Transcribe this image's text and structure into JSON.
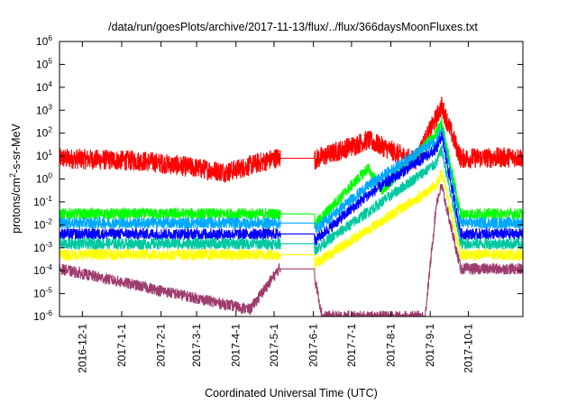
{
  "chart_data": {
    "type": "line",
    "title": "/data/run/goesPlots/archive/2017-11-13/flux/../flux/366daysMoonFluxes.txt",
    "xlabel": "Coordinated Universal Time (UTC)",
    "ylabel_base": "protons/cm",
    "ylabel_sup": "2",
    "ylabel_rest": "-s-sr-MeV",
    "yscale": "log",
    "ylim": [
      1e-06,
      1000000.0
    ],
    "xlim": [
      "2016-11-13",
      "2017-11-13"
    ],
    "grid": false,
    "y_ticks": [
      {
        "base": "10",
        "exp": "-6",
        "value": 1e-06
      },
      {
        "base": "10",
        "exp": "-5",
        "value": 1e-05
      },
      {
        "base": "10",
        "exp": "-4",
        "value": 0.0001
      },
      {
        "base": "10",
        "exp": "-3",
        "value": 0.001
      },
      {
        "base": "10",
        "exp": "-2",
        "value": 0.01
      },
      {
        "base": "10",
        "exp": "-1",
        "value": 0.1
      },
      {
        "base": "10",
        "exp": "0",
        "value": 1
      },
      {
        "base": "10",
        "exp": "1",
        "value": 10
      },
      {
        "base": "10",
        "exp": "2",
        "value": 100
      },
      {
        "base": "10",
        "exp": "3",
        "value": 1000
      },
      {
        "base": "10",
        "exp": "4",
        "value": 10000
      },
      {
        "base": "10",
        "exp": "5",
        "value": 100000
      },
      {
        "base": "10",
        "exp": "6",
        "value": 1000000
      }
    ],
    "x_ticks": [
      "2016-12-1",
      "2017-1-1",
      "2017-2-1",
      "2017-3-1",
      "2017-4-1",
      "2017-5-1",
      "2017-6-1",
      "2017-7-1",
      "2017-8-1",
      "2017-9-1",
      "2017-10-1"
    ],
    "data_gap": [
      "2017-05-06",
      "2017-06-02"
    ],
    "series": [
      {
        "color": "#ff0000",
        "typical": 8,
        "points": [
          [
            "2016-11-13",
            8
          ],
          [
            "2017-01-20",
            6
          ],
          [
            "2017-03-25",
            2
          ],
          [
            "2017-05-05",
            9
          ],
          [
            "2017-06-02",
            7
          ],
          [
            "2017-07-14",
            50
          ],
          [
            "2017-08-20",
            6
          ],
          [
            "2017-09-06",
            500
          ],
          [
            "2017-09-10",
            1500
          ],
          [
            "2017-09-25",
            8
          ],
          [
            "2017-11-13",
            9
          ]
        ]
      },
      {
        "color": "#00ff00",
        "typical": 0.03,
        "points": [
          [
            "2016-11-13",
            0.03
          ],
          [
            "2017-05-05",
            0.03
          ],
          [
            "2017-06-02",
            0.01
          ],
          [
            "2017-07-14",
            3
          ],
          [
            "2017-07-25",
            0.3
          ],
          [
            "2017-09-06",
            100
          ],
          [
            "2017-09-10",
            300
          ],
          [
            "2017-09-25",
            0.03
          ],
          [
            "2017-11-13",
            0.03
          ]
        ]
      },
      {
        "color": "#00a8ff",
        "typical": 0.012,
        "points": [
          [
            "2016-11-13",
            0.012
          ],
          [
            "2017-05-05",
            0.012
          ],
          [
            "2017-06-02",
            0.006
          ],
          [
            "2017-07-14",
            0.5
          ],
          [
            "2017-09-06",
            50
          ],
          [
            "2017-09-10",
            150
          ],
          [
            "2017-09-25",
            0.012
          ],
          [
            "2017-11-13",
            0.012
          ]
        ]
      },
      {
        "color": "#0000ff",
        "typical": 0.004,
        "points": [
          [
            "2016-11-13",
            0.004
          ],
          [
            "2017-05-05",
            0.004
          ],
          [
            "2017-06-02",
            0.002
          ],
          [
            "2017-07-14",
            0.2
          ],
          [
            "2017-09-06",
            20
          ],
          [
            "2017-09-10",
            80
          ],
          [
            "2017-09-25",
            0.004
          ],
          [
            "2017-11-13",
            0.004
          ]
        ]
      },
      {
        "color": "#00c8a0",
        "typical": 0.0015,
        "points": [
          [
            "2016-11-13",
            0.0015
          ],
          [
            "2017-05-05",
            0.0015
          ],
          [
            "2017-06-02",
            0.0008
          ],
          [
            "2017-09-06",
            5
          ],
          [
            "2017-09-10",
            20
          ],
          [
            "2017-09-25",
            0.0015
          ],
          [
            "2017-11-13",
            0.0015
          ]
        ]
      },
      {
        "color": "#ffff00",
        "typical": 0.0005,
        "points": [
          [
            "2016-11-13",
            0.0005
          ],
          [
            "2017-05-05",
            0.0005
          ],
          [
            "2017-06-02",
            0.0002
          ],
          [
            "2017-09-06",
            0.5
          ],
          [
            "2017-09-10",
            2
          ],
          [
            "2017-09-25",
            0.0005
          ],
          [
            "2017-11-13",
            0.0005
          ]
        ]
      },
      {
        "color": "#9e3c6e",
        "typical": 0.00012,
        "points": [
          [
            "2016-11-13",
            0.00012
          ],
          [
            "2017-04-12",
            2e-06
          ],
          [
            "2017-05-05",
            0.00012
          ],
          [
            "2017-06-02",
            5e-05
          ],
          [
            "2017-06-08",
            1e-06
          ],
          [
            "2017-08-28",
            1e-06
          ],
          [
            "2017-09-06",
            0.1
          ],
          [
            "2017-09-10",
            0.5
          ],
          [
            "2017-09-25",
            0.00012
          ],
          [
            "2017-11-13",
            0.00012
          ]
        ]
      }
    ]
  }
}
